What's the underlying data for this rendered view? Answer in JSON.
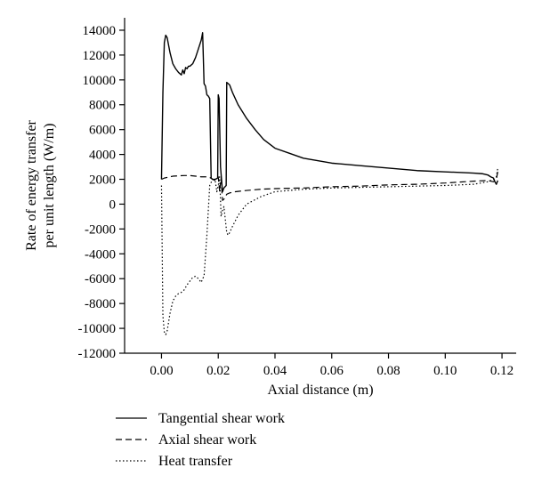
{
  "chart_data": {
    "type": "line",
    "xlabel": "Axial distance (m)",
    "ylabel_lines": [
      "Rate of energy transfer",
      "per unit length (W/m)"
    ],
    "xlim": [
      -0.013,
      0.125
    ],
    "ylim": [
      -12000,
      15000
    ],
    "xticks": [
      0.0,
      0.02,
      0.04,
      0.06,
      0.08,
      0.1,
      0.12
    ],
    "xtick_labels": [
      "0.00",
      "0.02",
      "0.04",
      "0.06",
      "0.08",
      "0.10",
      "0.12"
    ],
    "yticks": [
      -12000,
      -10000,
      -8000,
      -6000,
      -4000,
      -2000,
      0,
      2000,
      4000,
      6000,
      8000,
      10000,
      12000,
      14000
    ],
    "ytick_labels": [
      "-12000",
      "-10000",
      "-8000",
      "-6000",
      "-4000",
      "-2000",
      "0",
      "2000",
      "4000",
      "6000",
      "8000",
      "10000",
      "12000",
      "14000"
    ],
    "grid": false,
    "legend_position": "below",
    "series": [
      {
        "name": "Tangential shear work",
        "style": "solid",
        "x": [
          0.0,
          0.0005,
          0.001,
          0.0015,
          0.002,
          0.003,
          0.004,
          0.005,
          0.006,
          0.007,
          0.0075,
          0.008,
          0.0085,
          0.009,
          0.0095,
          0.01,
          0.011,
          0.012,
          0.013,
          0.014,
          0.0145,
          0.015,
          0.0155,
          0.016,
          0.0165,
          0.017,
          0.0175,
          0.018,
          0.019,
          0.0198,
          0.02,
          0.0203,
          0.0208,
          0.0215,
          0.022,
          0.0228,
          0.023,
          0.024,
          0.025,
          0.027,
          0.03,
          0.033,
          0.036,
          0.04,
          0.045,
          0.05,
          0.055,
          0.06,
          0.07,
          0.08,
          0.09,
          0.1,
          0.105,
          0.11,
          0.113,
          0.115,
          0.116,
          0.117,
          0.1175,
          0.118,
          0.1185
        ],
        "y": [
          2000,
          9000,
          13000,
          13600,
          13400,
          12200,
          11300,
          10900,
          10600,
          10400,
          10800,
          10500,
          11000,
          10900,
          11100,
          11100,
          11300,
          11800,
          12500,
          13200,
          13800,
          9700,
          9500,
          8800,
          8700,
          8500,
          2100,
          2000,
          2000,
          2100,
          8800,
          8500,
          3000,
          1000,
          1300,
          1500,
          9800,
          9600,
          9000,
          8000,
          6900,
          6000,
          5200,
          4500,
          4100,
          3700,
          3500,
          3300,
          3100,
          2900,
          2700,
          2600,
          2550,
          2500,
          2450,
          2350,
          2200,
          2100,
          1800,
          1600,
          1900
        ]
      },
      {
        "name": "Axial shear work",
        "style": "dashed",
        "x": [
          0.0,
          0.001,
          0.002,
          0.003,
          0.004,
          0.006,
          0.008,
          0.01,
          0.012,
          0.014,
          0.016,
          0.017,
          0.018,
          0.019,
          0.02,
          0.0205,
          0.021,
          0.0215,
          0.022,
          0.023,
          0.024,
          0.026,
          0.03,
          0.035,
          0.04,
          0.05,
          0.06,
          0.07,
          0.08,
          0.09,
          0.1,
          0.11,
          0.115,
          0.117,
          0.118,
          0.1185
        ],
        "y": [
          2000,
          2100,
          2150,
          2200,
          2250,
          2280,
          2300,
          2300,
          2250,
          2200,
          2200,
          2150,
          2000,
          1900,
          2200,
          1000,
          2100,
          300,
          400,
          800,
          900,
          1000,
          1100,
          1200,
          1250,
          1300,
          1400,
          1450,
          1550,
          1600,
          1700,
          1850,
          1900,
          1800,
          2000,
          2600
        ]
      },
      {
        "name": "Heat transfer",
        "style": "dotted",
        "x": [
          0.0,
          0.0005,
          0.001,
          0.0015,
          0.002,
          0.003,
          0.004,
          0.005,
          0.006,
          0.007,
          0.008,
          0.009,
          0.01,
          0.011,
          0.012,
          0.013,
          0.014,
          0.0145,
          0.015,
          0.016,
          0.017,
          0.018,
          0.019,
          0.0195,
          0.02,
          0.0205,
          0.021,
          0.0215,
          0.022,
          0.023,
          0.0235,
          0.024,
          0.025,
          0.027,
          0.03,
          0.035,
          0.04,
          0.05,
          0.06,
          0.07,
          0.08,
          0.09,
          0.1,
          0.11,
          0.115,
          0.117,
          0.118,
          0.1185
        ],
        "y": [
          1500,
          -9000,
          -10300,
          -10500,
          -10200,
          -8800,
          -7800,
          -7400,
          -7200,
          -7100,
          -6900,
          -6500,
          -6200,
          -5900,
          -5800,
          -6000,
          -6300,
          -6000,
          -5800,
          -2500,
          1500,
          2000,
          1800,
          1000,
          1500,
          2200,
          -1000,
          -500,
          -200,
          -2300,
          -2500,
          -2300,
          -1800,
          -900,
          0,
          600,
          1000,
          1200,
          1300,
          1350,
          1400,
          1450,
          1500,
          1600,
          1800,
          2000,
          2200,
          2900
        ]
      }
    ]
  }
}
